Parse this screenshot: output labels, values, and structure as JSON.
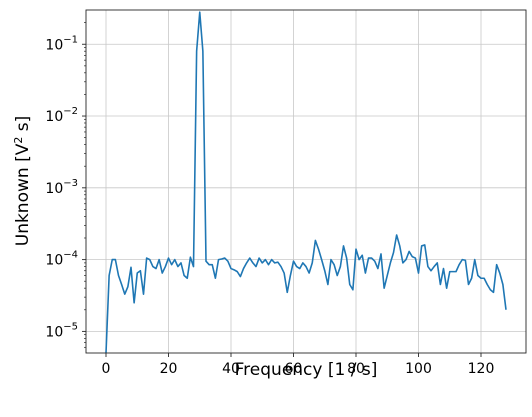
{
  "chart_data": {
    "type": "line",
    "title": "",
    "xlabel": "Frequency [1 / s]",
    "ylabel": "Unknown [V",
    "ylabel_sup": "2",
    "ylabel_tail": " s]",
    "xscale": "linear",
    "yscale": "log",
    "xlim": [
      -6.4,
      134.4
    ],
    "ylim": [
      5e-06,
      0.3
    ],
    "grid": true,
    "line_color": "#1f77b4",
    "x_ticks": [
      0,
      20,
      40,
      60,
      80,
      100,
      120
    ],
    "x_tick_labels": [
      "0",
      "20",
      "40",
      "60",
      "80",
      "100",
      "120"
    ],
    "y_ticks": [
      1e-05,
      0.0001,
      0.001,
      0.01,
      0.1
    ],
    "y_tick_labels": [
      {
        "base": "10",
        "exp": "−5"
      },
      {
        "base": "10",
        "exp": "−4"
      },
      {
        "base": "10",
        "exp": "−3"
      },
      {
        "base": "10",
        "exp": "−2"
      },
      {
        "base": "10",
        "exp": "−1"
      }
    ],
    "series": [
      {
        "x": [
          0,
          1,
          2,
          3,
          4,
          5,
          6,
          7,
          8,
          9,
          10,
          11,
          12,
          13,
          14,
          15,
          16,
          17,
          18,
          19,
          20,
          21,
          22,
          23,
          24,
          25,
          26,
          27,
          28,
          29,
          30,
          31,
          32,
          33,
          34,
          35,
          36,
          37,
          38,
          39,
          40,
          41,
          42,
          43,
          44,
          45,
          46,
          47,
          48,
          49,
          50,
          51,
          52,
          53,
          54,
          55,
          56,
          57,
          58,
          59,
          60,
          61,
          62,
          63,
          64,
          65,
          66,
          67,
          68,
          69,
          70,
          71,
          72,
          73,
          74,
          75,
          76,
          77,
          78,
          79,
          80,
          81,
          82,
          83,
          84,
          85,
          86,
          87,
          88,
          89,
          90,
          91,
          92,
          93,
          94,
          95,
          96,
          97,
          98,
          99,
          100,
          101,
          102,
          103,
          104,
          105,
          106,
          107,
          108,
          109,
          110,
          111,
          112,
          113,
          114,
          115,
          116,
          117,
          118,
          119,
          120,
          121,
          122,
          123,
          124,
          125,
          126,
          127,
          128
        ],
        "y": [
          5e-06,
          6e-05,
          0.0001,
          0.0001,
          6e-05,
          4.5e-05,
          3.3e-05,
          4.2e-05,
          7.8e-05,
          2.5e-05,
          6.5e-05,
          7e-05,
          3.3e-05,
          0.000105,
          0.0001,
          8e-05,
          7.5e-05,
          0.0001,
          6.5e-05,
          8e-05,
          0.000105,
          8.5e-05,
          0.0001,
          8e-05,
          9e-05,
          6e-05,
          5.5e-05,
          0.000108,
          8e-05,
          0.08,
          0.28,
          0.08,
          9.5e-05,
          8.5e-05,
          8.5e-05,
          5.5e-05,
          0.0001,
          0.000102,
          0.000105,
          9.5e-05,
          7.5e-05,
          7.2e-05,
          6.8e-05,
          5.8e-05,
          7.5e-05,
          9e-05,
          0.000105,
          9e-05,
          8e-05,
          0.000105,
          9e-05,
          0.0001,
          8.5e-05,
          0.0001,
          9e-05,
          9.2e-05,
          8e-05,
          6.5e-05,
          3.5e-05,
          6e-05,
          9.5e-05,
          8e-05,
          7.5e-05,
          9e-05,
          8e-05,
          6.5e-05,
          9e-05,
          0.000185,
          0.00014,
          0.0001,
          7e-05,
          4.5e-05,
          0.0001,
          8.5e-05,
          6e-05,
          8e-05,
          0.000155,
          0.000105,
          4.5e-05,
          3.8e-05,
          0.00014,
          0.0001,
          0.000115,
          6.5e-05,
          0.000105,
          0.000105,
          9.5e-05,
          7.5e-05,
          0.00012,
          4e-05,
          6e-05,
          9e-05,
          0.000125,
          0.00022,
          0.000155,
          9e-05,
          0.0001,
          0.00013,
          0.00011,
          0.000105,
          6.5e-05,
          0.000155,
          0.00016,
          8e-05,
          7e-05,
          8e-05,
          9e-05,
          4.5e-05,
          7.5e-05,
          4e-05,
          6.8e-05,
          6.8e-05,
          6.8e-05,
          8.5e-05,
          0.0001,
          9.8e-05,
          4.5e-05,
          5.5e-05,
          0.0001,
          6e-05,
          5.5e-05,
          5.5e-05,
          4.5e-05,
          3.8e-05,
          3.5e-05,
          8.5e-05,
          6.5e-05,
          4.5e-05,
          2e-05
        ]
      }
    ]
  }
}
